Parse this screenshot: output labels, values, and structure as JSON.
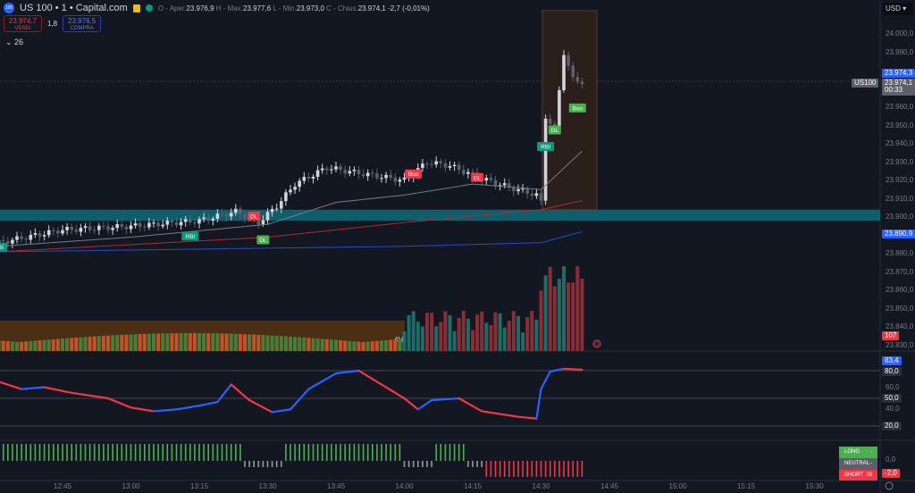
{
  "header": {
    "symbol": "US 100 • 1 • Capital.com",
    "logo_text": "100",
    "open_label": "O - Aper.",
    "open": "23.976,9",
    "high_label": "H - Max.",
    "high": "23.977,6",
    "low_label": "L - Min.",
    "low": "23.973,0",
    "close_label": "C - Chius.",
    "close": "23.974,1",
    "change": "-2,7 (-0,01%)"
  },
  "trade": {
    "sell_price": "23.974,7",
    "sell_label": "VENDI",
    "spread": "1,8",
    "buy_price": "23.976,5",
    "buy_label": "COMPRA"
  },
  "indicator_count": "26",
  "currency": "USD",
  "price_axis": [
    "24.000,0",
    "23.990,0",
    "23.960,0",
    "23.950,0",
    "23.940,0",
    "23.930,0",
    "23.920,0",
    "23.910,0",
    "23.900,0",
    "23.880,0",
    "23.870,0",
    "23.860,0",
    "23.850,0",
    "23.840,0",
    "23.830,0"
  ],
  "price_tags": {
    "bid": "23.974,3",
    "last": "23.974,1",
    "countdown": "00:33",
    "symbol": "US100",
    "ma": "23.890,9",
    "volume": "107"
  },
  "rsi_axis": {
    "current": "83,4",
    "upper": "80,0",
    "mid": "50,0",
    "lower": "20,0",
    "l60": "60,0",
    "l40": "40,0"
  },
  "signal": {
    "long": "LONG",
    "long_val": "-",
    "neutral": "NEUTRAL",
    "neutral_val": "-",
    "short": "SHORT",
    "short_val": "26",
    "axis_zero": "0,0",
    "current": "-2,0"
  },
  "time_axis": [
    "12:45",
    "13:00",
    "13:15",
    "13:30",
    "13:45",
    "14:00",
    "14:15",
    "14:30",
    "14:45",
    "15:00",
    "15:15",
    "15:30"
  ],
  "labels": [
    {
      "text": "RBI",
      "type": "buy",
      "time": "12:31",
      "price": 23886
    },
    {
      "text": "RBI",
      "type": "buy",
      "time": "13:13",
      "price": 23892
    },
    {
      "text": "DL",
      "type": "sell",
      "time": "13:27",
      "price": 23903
    },
    {
      "text": "DL",
      "type": "buy",
      "time": "13:29",
      "price": 23890
    },
    {
      "text": "Boo",
      "type": "sell",
      "time": "14:02",
      "price": 23926
    },
    {
      "text": "DL",
      "type": "sell",
      "time": "14:16",
      "price": 23924
    },
    {
      "text": "RBI",
      "type": "buy",
      "time": "14:31",
      "price": 23941
    },
    {
      "text": "DL",
      "type": "buy",
      "time": "14:33",
      "price": 23950
    },
    {
      "text": "Boo",
      "type": "buy",
      "time": "14:38",
      "price": 23962
    }
  ],
  "colors": {
    "up": "#d1d4dc",
    "down": "#5d606b",
    "band": "#0e5f6b",
    "rsi_up": "#2962ff",
    "rsi_down": "#f23645",
    "bull": "#4caf50",
    "bear": "#f23645",
    "neutral": "#9598a1"
  },
  "chart_data": {
    "type": "candlestick",
    "closes": {
      "times": [
        "12:31",
        "12:45",
        "13:00",
        "13:15",
        "13:23",
        "13:28",
        "13:32",
        "13:36",
        "13:43",
        "13:50",
        "14:00",
        "14:05",
        "14:10",
        "14:17",
        "14:22",
        "14:29",
        "14:30",
        "14:31",
        "14:33",
        "14:35",
        "14:37",
        "14:39"
      ],
      "values": [
        23886,
        23893,
        23895,
        23898,
        23903,
        23897,
        23906,
        23918,
        23927,
        23924,
        23920,
        23930,
        23928,
        23921,
        23917,
        23912,
        23908,
        23955,
        23948,
        23990,
        23975,
        23974
      ]
    },
    "ma_gray": {
      "times": [
        "12:31",
        "13:00",
        "13:30",
        "13:45",
        "14:00",
        "14:15",
        "14:30",
        "14:39"
      ],
      "values": [
        23884,
        23889,
        23896,
        23908,
        23912,
        23918,
        23915,
        23936
      ]
    },
    "ma_red": {
      "times": [
        "12:31",
        "13:30",
        "14:00",
        "14:30",
        "14:39"
      ],
      "values": [
        23881,
        23889,
        23897,
        23904,
        23909
      ]
    },
    "ma_blue": {
      "times": [
        "12:31",
        "14:00",
        "14:30",
        "14:39"
      ],
      "values": [
        23881,
        23884,
        23886,
        23892
      ]
    },
    "rsi": {
      "times": [
        "12:31",
        "12:36",
        "12:41",
        "12:47",
        "12:55",
        "13:00",
        "13:05",
        "13:10",
        "13:15",
        "13:19",
        "13:22",
        "13:26",
        "13:31",
        "13:35",
        "13:39",
        "13:45",
        "13:50",
        "14:00",
        "14:03",
        "14:06",
        "14:12",
        "14:17",
        "14:25",
        "14:29",
        "14:30",
        "14:32",
        "14:35",
        "14:39"
      ],
      "values": [
        68,
        60,
        62,
        56,
        50,
        40,
        36,
        38,
        42,
        46,
        65,
        48,
        35,
        38,
        60,
        77,
        80,
        50,
        38,
        48,
        50,
        36,
        30,
        28,
        60,
        79,
        82,
        81
      ]
    },
    "signal_segments": [
      {
        "from": "12:31",
        "to": "13:24",
        "state": "long"
      },
      {
        "from": "13:25",
        "to": "13:33",
        "state": "neutral"
      },
      {
        "from": "13:34",
        "to": "13:59",
        "state": "long"
      },
      {
        "from": "14:00",
        "to": "14:06",
        "state": "neutral"
      },
      {
        "from": "14:07",
        "to": "14:13",
        "state": "long"
      },
      {
        "from": "14:14",
        "to": "14:17",
        "state": "neutral"
      },
      {
        "from": "14:18",
        "to": "14:39",
        "state": "short"
      }
    ],
    "y_range": [
      23826,
      24012
    ],
    "rsi_range": [
      0,
      100
    ]
  }
}
